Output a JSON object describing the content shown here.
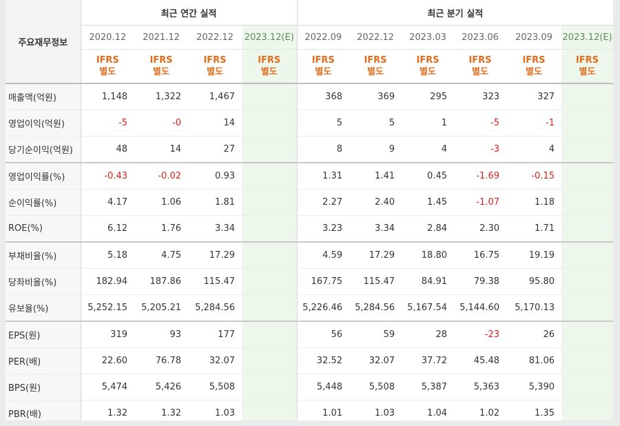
{
  "title_label": "주요재무정보",
  "group_annual": "최근 연간 실적",
  "group_quarter": "최근 분기 실적",
  "periods_annual": [
    "2020.12",
    "2021.12",
    "2022.12",
    "2023.12(E)"
  ],
  "periods_quarter": [
    "2022.09",
    "2022.12",
    "2023.03",
    "2023.06",
    "2023.09",
    "2023.12(E)"
  ],
  "standard_line1": "IFRS",
  "standard_line2": "별도",
  "rows": [
    {
      "label": "매출액(억원)",
      "annual": [
        "1,148",
        "1,322",
        "1,467",
        ""
      ],
      "quarter": [
        "368",
        "369",
        "295",
        "323",
        "327",
        ""
      ]
    },
    {
      "label": "영업이익(억원)",
      "annual": [
        "-5",
        "-0",
        "14",
        ""
      ],
      "quarter": [
        "5",
        "5",
        "1",
        "-5",
        "-1",
        ""
      ]
    },
    {
      "label": "당기순이익(억원)",
      "annual": [
        "48",
        "14",
        "27",
        ""
      ],
      "quarter": [
        "8",
        "9",
        "4",
        "-3",
        "4",
        ""
      ]
    },
    {
      "label": "영업이익률(%)",
      "annual": [
        "-0.43",
        "-0.02",
        "0.93",
        ""
      ],
      "quarter": [
        "1.31",
        "1.41",
        "0.45",
        "-1.69",
        "-0.15",
        ""
      ]
    },
    {
      "label": "순이익률(%)",
      "annual": [
        "4.17",
        "1.06",
        "1.81",
        ""
      ],
      "quarter": [
        "2.27",
        "2.40",
        "1.45",
        "-1.07",
        "1.18",
        ""
      ]
    },
    {
      "label": "ROE(%)",
      "annual": [
        "6.12",
        "1.76",
        "3.34",
        ""
      ],
      "quarter": [
        "3.23",
        "3.34",
        "2.84",
        "2.30",
        "1.71",
        ""
      ]
    },
    {
      "label": "부채비율(%)",
      "annual": [
        "5.18",
        "4.75",
        "17.29",
        ""
      ],
      "quarter": [
        "4.59",
        "17.29",
        "18.80",
        "16.75",
        "19.19",
        ""
      ]
    },
    {
      "label": "당좌비율(%)",
      "annual": [
        "182.94",
        "187.86",
        "115.47",
        ""
      ],
      "quarter": [
        "167.75",
        "115.47",
        "84.91",
        "79.38",
        "95.80",
        ""
      ]
    },
    {
      "label": "유보율(%)",
      "annual": [
        "5,252.15",
        "5,205.21",
        "5,284.56",
        ""
      ],
      "quarter": [
        "5,226.46",
        "5,284.56",
        "5,167.54",
        "5,144.60",
        "5,170.13",
        ""
      ]
    },
    {
      "label": "EPS(원)",
      "annual": [
        "319",
        "93",
        "177",
        ""
      ],
      "quarter": [
        "56",
        "59",
        "28",
        "-23",
        "26",
        ""
      ]
    },
    {
      "label": "PER(배)",
      "annual": [
        "22.60",
        "76.78",
        "32.07",
        ""
      ],
      "quarter": [
        "32.52",
        "32.07",
        "37.72",
        "45.48",
        "81.06",
        ""
      ]
    },
    {
      "label": "BPS(원)",
      "annual": [
        "5,474",
        "5,426",
        "5,508",
        ""
      ],
      "quarter": [
        "5,448",
        "5,508",
        "5,387",
        "5,363",
        "5,390",
        ""
      ]
    },
    {
      "label": "PBR(배)",
      "annual": [
        "1.32",
        "1.32",
        "1.03",
        ""
      ],
      "quarter": [
        "1.01",
        "1.03",
        "1.04",
        "1.02",
        "1.35",
        ""
      ]
    }
  ]
}
